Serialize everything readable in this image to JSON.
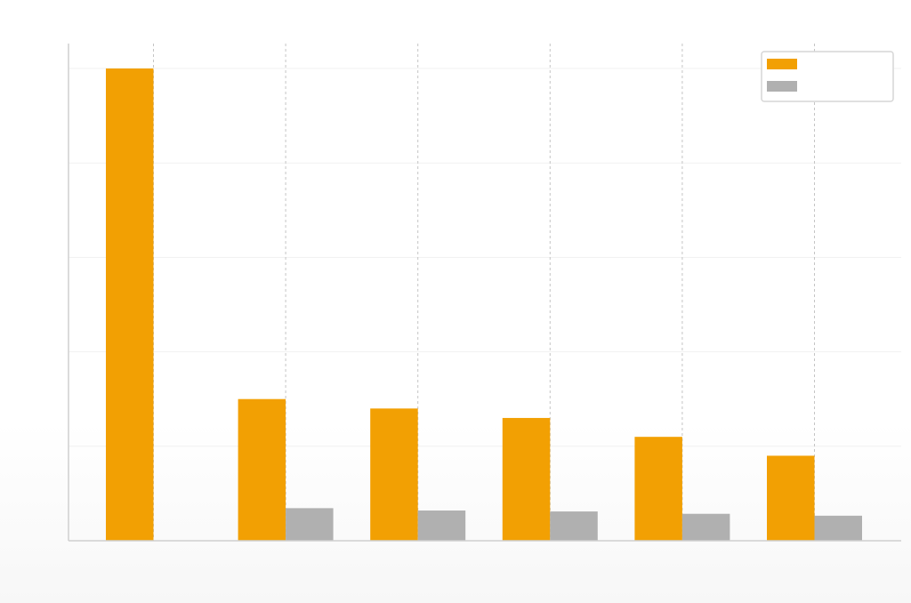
{
  "chart_data": {
    "type": "bar",
    "title": "",
    "xlabel": "",
    "ylabel": "",
    "categories": [
      "",
      "",
      "",
      "",
      "",
      ""
    ],
    "ylim": [
      0,
      100
    ],
    "grid": true,
    "legend_position": "top-right",
    "series": [
      {
        "name": "",
        "color": "#f2a003",
        "values": [
          100,
          30,
          28,
          26,
          22,
          18
        ]
      },
      {
        "name": "",
        "color": "#b0b0b0",
        "values": [
          0,
          6.9,
          6.4,
          6.2,
          5.7,
          5.3
        ]
      }
    ]
  }
}
